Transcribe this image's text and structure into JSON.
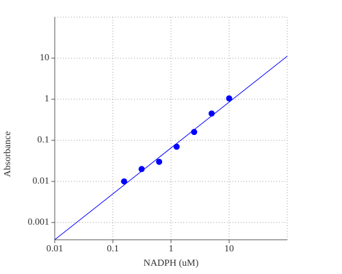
{
  "chart_data": {
    "type": "scatter",
    "x_label": "NADPH (uM)",
    "y_label": "Absorbance",
    "log_x": true,
    "log_y": true,
    "grid": true,
    "xlim": [
      0.01,
      100
    ],
    "ylim": [
      0.00038,
      100
    ],
    "xticks": [
      0.01,
      0.1,
      1,
      10
    ],
    "yticks": [
      0.001,
      0.01,
      0.1,
      1,
      10
    ],
    "series": [
      {
        "mode": "markers",
        "color": "#0000ff",
        "x": [
          0.15625,
          0.3125,
          0.625,
          1.25,
          2.5,
          5,
          10
        ],
        "values": [
          0.01,
          0.02,
          0.03,
          0.07,
          0.16,
          0.45,
          1.05
        ]
      },
      {
        "mode": "line",
        "color": "#0000ff",
        "x": [
          0.01,
          100
        ],
        "values": [
          0.00038,
          11.2
        ]
      }
    ]
  }
}
